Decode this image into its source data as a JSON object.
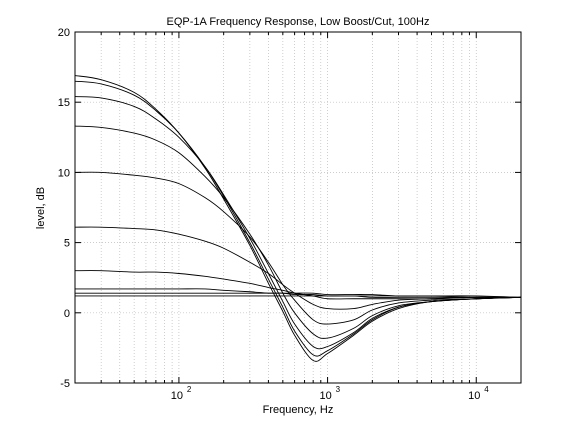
{
  "chart_data": {
    "type": "line",
    "title": "EQP-1A Frequency Response, Low Boost/Cut, 100Hz",
    "xlabel": "Frequency, Hz",
    "ylabel": "level, dB",
    "xscale": "log",
    "xlim": [
      20,
      20000
    ],
    "ylim": [
      -5,
      20
    ],
    "grid": true,
    "line_color": "#000000",
    "x_ticks": [
      {
        "value": 100,
        "base": "10",
        "exp": "2"
      },
      {
        "value": 1000,
        "base": "10",
        "exp": "3"
      },
      {
        "value": 10000,
        "base": "10",
        "exp": "4"
      }
    ],
    "y_ticks": [
      -5,
      0,
      5,
      10,
      15,
      20
    ],
    "x": [
      20,
      30,
      50,
      70,
      100,
      150,
      200,
      300,
      400,
      500,
      600,
      800,
      1000,
      1500,
      2000,
      3000,
      5000,
      10000,
      20000
    ],
    "series": [
      {
        "values": [
          1.2,
          1.2,
          1.2,
          1.2,
          1.2,
          1.2,
          1.2,
          1.2,
          1.2,
          1.2,
          1.2,
          1.2,
          1.2,
          1.2,
          1.2,
          1.2,
          1.2,
          1.2,
          1.1
        ]
      },
      {
        "values": [
          1.4,
          1.4,
          1.4,
          1.4,
          1.4,
          1.4,
          1.4,
          1.4,
          1.4,
          1.4,
          1.4,
          1.4,
          1.3,
          1.3,
          1.3,
          1.2,
          1.2,
          1.1,
          1.1
        ]
      },
      {
        "values": [
          1.7,
          1.7,
          1.7,
          1.7,
          1.7,
          1.7,
          1.6,
          1.5,
          1.4,
          1.4,
          1.3,
          1.3,
          1.2,
          1.2,
          1.1,
          1.1,
          1.1,
          1.1,
          1.1
        ]
      },
      {
        "values": [
          3.0,
          3.0,
          2.9,
          2.9,
          2.8,
          2.6,
          2.4,
          2.1,
          1.8,
          1.6,
          1.4,
          1.2,
          1.0,
          1.0,
          1.0,
          1.0,
          1.0,
          1.1,
          1.1
        ]
      },
      {
        "values": [
          6.1,
          6.1,
          6.0,
          5.9,
          5.6,
          5.1,
          4.6,
          3.6,
          2.8,
          2.0,
          1.4,
          0.6,
          0.3,
          0.3,
          0.6,
          0.9,
          1.0,
          1.1,
          1.1
        ]
      },
      {
        "values": [
          10.0,
          10.0,
          9.8,
          9.6,
          9.2,
          8.2,
          7.2,
          5.4,
          3.6,
          2.0,
          0.9,
          -0.5,
          -0.8,
          -0.5,
          0.2,
          0.7,
          0.9,
          1.0,
          1.1
        ]
      },
      {
        "values": [
          13.3,
          13.2,
          12.8,
          12.3,
          11.4,
          9.7,
          8.2,
          5.6,
          3.4,
          1.4,
          0.0,
          -1.5,
          -1.8,
          -1.1,
          -0.2,
          0.5,
          0.8,
          1.0,
          1.1
        ]
      },
      {
        "values": [
          15.4,
          15.3,
          14.7,
          13.8,
          12.5,
          10.4,
          8.4,
          5.3,
          2.8,
          0.8,
          -0.8,
          -2.4,
          -2.4,
          -1.4,
          -0.4,
          0.4,
          0.8,
          1.0,
          1.1
        ]
      },
      {
        "values": [
          16.5,
          16.3,
          15.5,
          14.4,
          12.8,
          10.4,
          8.3,
          5.0,
          2.4,
          0.4,
          -1.3,
          -3.0,
          -2.7,
          -1.5,
          -0.5,
          0.4,
          0.8,
          1.0,
          1.1
        ]
      },
      {
        "values": [
          16.9,
          16.6,
          15.7,
          14.5,
          12.8,
          10.3,
          8.1,
          4.8,
          2.1,
          0.1,
          -1.6,
          -3.4,
          -2.9,
          -1.6,
          -0.6,
          0.3,
          0.8,
          1.0,
          1.1
        ]
      }
    ]
  }
}
